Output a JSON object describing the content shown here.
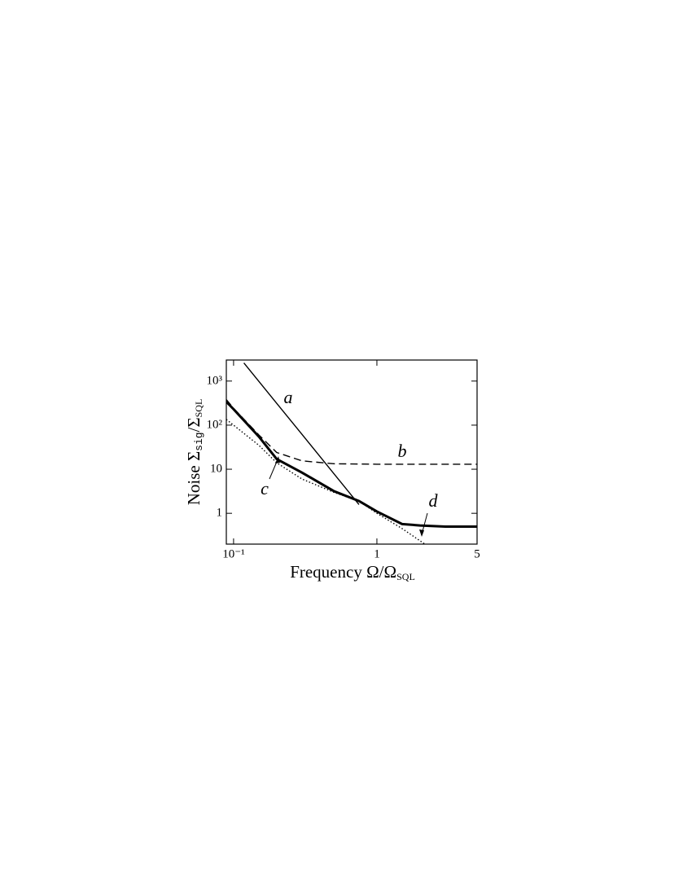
{
  "chart_data": {
    "type": "line",
    "xlabel": [
      "Frequency Ω/Ω",
      "SQL"
    ],
    "ylabel": [
      "Noise Σ",
      "sig",
      "/Σ",
      "SQL"
    ],
    "xscale": "log",
    "yscale": "log",
    "xlim": [
      0.089,
      5
    ],
    "ylim": [
      0.2,
      3000
    ],
    "xticks": [
      {
        "value": 0.1,
        "label": "10⁻¹"
      },
      1,
      5
    ],
    "yticks": [
      1,
      10,
      {
        "value": 100,
        "label": "10²"
      },
      {
        "value": 1000,
        "label": "10³"
      }
    ],
    "series": [
      {
        "name": "a",
        "color": "#000000",
        "style": "solid",
        "weight": "thin",
        "x": [
          0.118,
          0.2,
          0.3,
          0.5,
          0.75
        ],
        "values": [
          2580,
          312,
          62,
          8,
          1.58
        ]
      },
      {
        "name": "b",
        "color": "#000000",
        "style": "dashed",
        "weight": "thin",
        "x": [
          0.089,
          0.1,
          0.15,
          0.2,
          0.3,
          0.5,
          1,
          2,
          5
        ],
        "values": [
          380,
          240,
          60,
          24,
          15.5,
          13.3,
          13,
          13,
          13
        ]
      },
      {
        "name": "c",
        "color": "#000000",
        "style": "solid",
        "weight": "thick",
        "x": [
          0.089,
          0.1,
          0.15,
          0.2,
          0.3,
          0.5,
          0.75,
          1,
          1.5,
          2,
          3,
          5
        ],
        "values": [
          340,
          230,
          55,
          17,
          8.4,
          3.2,
          1.9,
          1.1,
          0.57,
          0.53,
          0.5,
          0.5
        ]
      },
      {
        "name": "d",
        "color": "#000000",
        "style": "dotted",
        "weight": "thin",
        "x": [
          0.089,
          0.15,
          0.2,
          0.3,
          0.5,
          0.75,
          1,
          1.5,
          2.16
        ],
        "values": [
          135,
          35,
          14,
          6,
          3,
          1.9,
          1.0,
          0.45,
          0.2
        ]
      }
    ]
  }
}
